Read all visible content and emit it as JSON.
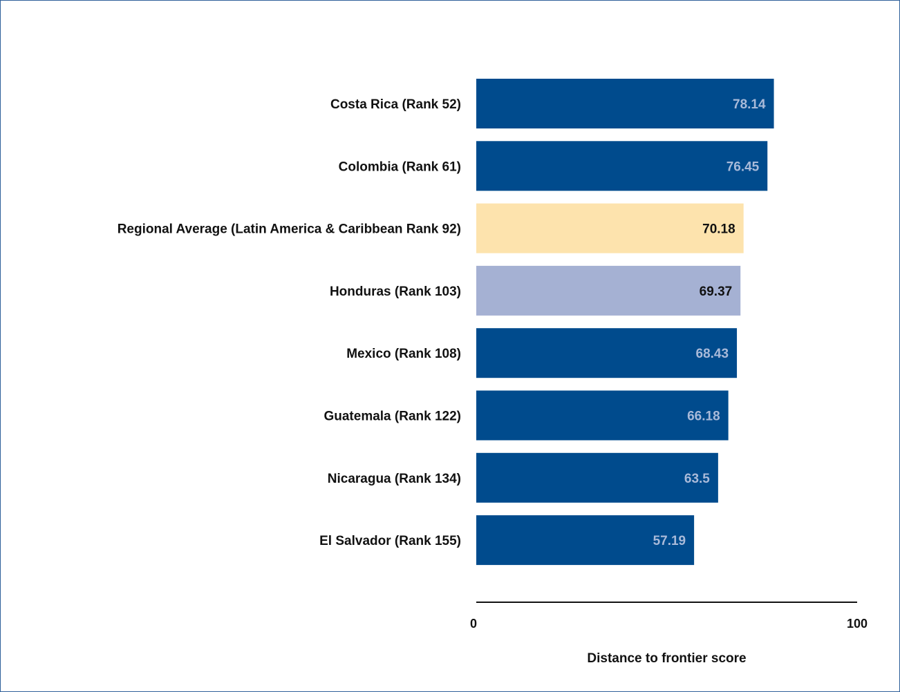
{
  "chart_data": {
    "type": "bar",
    "orientation": "horizontal",
    "categories": [
      "Costa Rica (Rank 52)",
      "Colombia (Rank 61)",
      "Regional Average (Latin America & Caribbean Rank 92)",
      "Honduras (Rank 103)",
      "Mexico (Rank 108)",
      "Guatemala (Rank 122)",
      "Nicaragua (Rank 134)",
      "El Salvador (Rank 155)"
    ],
    "values": [
      78.14,
      76.45,
      70.18,
      69.37,
      68.43,
      66.18,
      63.5,
      57.19
    ],
    "value_labels": [
      "78.14",
      "76.45",
      "70.18",
      "69.37",
      "68.43",
      "66.18",
      "63.5",
      "57.19"
    ],
    "bar_colors": [
      "#004b8d",
      "#004b8d",
      "#fde3ad",
      "#a5b1d3",
      "#004b8d",
      "#004b8d",
      "#004b8d",
      "#004b8d"
    ],
    "label_colors": [
      "#a9bad9",
      "#a9bad9",
      "#111111",
      "#111111",
      "#a9bad9",
      "#a9bad9",
      "#a9bad9",
      "#a9bad9"
    ],
    "xlim": [
      0,
      100
    ],
    "x_ticks": [
      "0",
      "100"
    ],
    "xlabel": "Distance to frontier score",
    "title": "",
    "grid": false,
    "legend": "none"
  }
}
